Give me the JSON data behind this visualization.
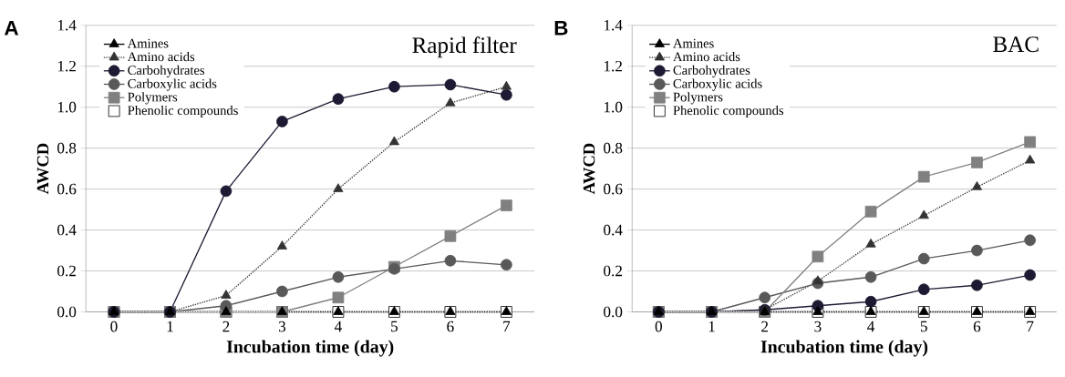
{
  "chart_data": [
    {
      "type": "line",
      "title": "Rapid filter",
      "annotations": [
        "A"
      ],
      "xlabel": "Incubation time (day)",
      "ylabel": "AWCD",
      "categories": [
        "0",
        "1",
        "2",
        "3",
        "4",
        "5",
        "6",
        "7"
      ],
      "ylim": [
        0,
        1.4
      ],
      "yticks": [
        {
          "value": 0,
          "label": "0.0"
        },
        {
          "value": 0.2,
          "label": "0.2"
        },
        {
          "value": 0.4,
          "label": "0.4"
        },
        {
          "value": 0.6,
          "label": "0.6"
        },
        {
          "value": 0.8,
          "label": "0.8"
        },
        {
          "value": 1.0,
          "label": "1.0"
        },
        {
          "value": 1.2,
          "label": "1.2"
        },
        {
          "value": 1.4,
          "label": "1.4"
        }
      ],
      "grid": "y",
      "legend": "top left",
      "series": [
        {
          "name": "Amines",
          "color": "#000000",
          "marker": "triangle",
          "line_style": "solid",
          "values": [
            0,
            0,
            0,
            0,
            0,
            0,
            0,
            0
          ]
        },
        {
          "name": "Amino acids",
          "color": "#333333",
          "marker": "triangle",
          "line_style": "dotted",
          "values": [
            0,
            0,
            0.08,
            0.32,
            0.6,
            0.83,
            1.02,
            1.1
          ]
        },
        {
          "name": "Carbohydrates",
          "color": "#1f1a33",
          "marker": "circle",
          "line_style": "solid",
          "values": [
            0,
            0,
            0.59,
            0.93,
            1.04,
            1.1,
            1.11,
            1.06
          ]
        },
        {
          "name": "Carboxylic acids",
          "color": "#595959",
          "marker": "circle",
          "line_style": "solid",
          "values": [
            0,
            0,
            0.03,
            0.1,
            0.17,
            0.21,
            0.25,
            0.23
          ]
        },
        {
          "name": "Polymers",
          "color": "#808080",
          "marker": "square",
          "line_style": "solid",
          "values": [
            0,
            0,
            0,
            0,
            0.07,
            0.22,
            0.37,
            0.52
          ]
        },
        {
          "name": "Phenolic compounds",
          "color": "#ffffff",
          "marker": "square",
          "line_style": "dotted",
          "values": [
            0,
            0,
            0,
            0,
            0,
            0,
            0,
            0
          ]
        }
      ]
    },
    {
      "type": "line",
      "title": "BAC",
      "annotations": [
        "B"
      ],
      "xlabel": "Incubation time (day)",
      "ylabel": "AWCD",
      "categories": [
        "0",
        "1",
        "2",
        "3",
        "4",
        "5",
        "6",
        "7"
      ],
      "ylim": [
        0,
        1.4
      ],
      "yticks": [
        {
          "value": 0,
          "label": "0.0"
        },
        {
          "value": 0.2,
          "label": "0.2"
        },
        {
          "value": 0.4,
          "label": "0.4"
        },
        {
          "value": 0.6,
          "label": "0.6"
        },
        {
          "value": 0.8,
          "label": "0.8"
        },
        {
          "value": 1.0,
          "label": "1.0"
        },
        {
          "value": 1.2,
          "label": "1.2"
        },
        {
          "value": 1.4,
          "label": "1.4"
        }
      ],
      "grid": "y",
      "legend": "top left",
      "series": [
        {
          "name": "Amines",
          "color": "#000000",
          "marker": "triangle",
          "line_style": "solid",
          "values": [
            0,
            0,
            0,
            0,
            0,
            0,
            0,
            0
          ]
        },
        {
          "name": "Amino acids",
          "color": "#333333",
          "marker": "triangle",
          "line_style": "dotted",
          "values": [
            0,
            0,
            0.01,
            0.15,
            0.33,
            0.47,
            0.61,
            0.74
          ]
        },
        {
          "name": "Carbohydrates",
          "color": "#1f1a33",
          "marker": "circle",
          "line_style": "solid",
          "values": [
            0,
            0,
            0.01,
            0.03,
            0.05,
            0.11,
            0.13,
            0.18
          ]
        },
        {
          "name": "Carboxylic acids",
          "color": "#595959",
          "marker": "circle",
          "line_style": "solid",
          "values": [
            0,
            0,
            0.07,
            0.14,
            0.17,
            0.26,
            0.3,
            0.35
          ]
        },
        {
          "name": "Polymers",
          "color": "#808080",
          "marker": "square",
          "line_style": "solid",
          "values": [
            0,
            0,
            0,
            0.27,
            0.49,
            0.66,
            0.73,
            0.83
          ]
        },
        {
          "name": "Phenolic compounds",
          "color": "#ffffff",
          "marker": "square",
          "line_style": "dotted",
          "values": [
            0,
            0,
            0,
            0,
            0,
            0,
            0,
            0
          ]
        }
      ]
    }
  ]
}
